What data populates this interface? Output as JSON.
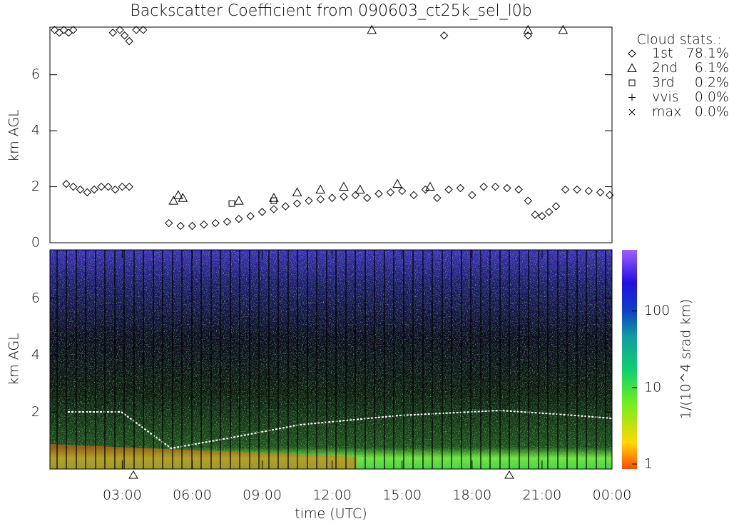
{
  "chart_data": [
    {
      "type": "scatter",
      "title": "Backscatter Coefficient from 090603_ct25k_sel_l0b",
      "y_label": "km AGL",
      "xlim": [
        -0.1,
        24
      ],
      "ylim": [
        0,
        7.7
      ],
      "yticks": [
        0,
        2,
        4,
        6
      ],
      "legend_title": "Cloud stats.:",
      "legend": [
        {
          "name": "1st",
          "label": "78.1%"
        },
        {
          "name": "2nd",
          "label": "6.1%"
        },
        {
          "name": "3rd",
          "label": "0.2%"
        },
        {
          "name": "vvis",
          "label": "0.0%"
        },
        {
          "name": "max",
          "label": "0.0%"
        }
      ],
      "series": [
        {
          "name": "1st",
          "color": "#000000",
          "x": [
            0.1,
            0.3,
            0.5,
            0.7,
            0.9,
            2.6,
            2.9,
            3.1,
            3.3,
            3.6,
            3.9,
            16.8,
            20.4,
            0.6,
            0.9,
            1.2,
            1.5,
            1.8,
            2.1,
            2.4,
            2.7,
            3.0,
            3.3,
            5.0,
            5.5,
            6.0,
            6.5,
            7.0,
            7.5,
            8.0,
            8.5,
            9.0,
            9.5,
            10.0,
            10.5,
            11.0,
            11.5,
            12.0,
            12.5,
            13.0,
            13.5,
            14.0,
            14.5,
            15.0,
            15.5,
            16.0,
            16.5,
            17.0,
            17.5,
            18.0,
            18.5,
            19.0,
            19.5,
            20.0,
            20.4,
            20.7,
            21.0,
            21.3,
            21.6,
            22.0,
            22.5,
            23.0,
            23.5,
            23.9
          ],
          "values": [
            7.6,
            7.5,
            7.6,
            7.5,
            7.6,
            7.5,
            7.6,
            7.4,
            7.2,
            7.6,
            7.6,
            7.4,
            7.4,
            2.1,
            2.0,
            1.9,
            1.8,
            1.9,
            2.0,
            2.0,
            1.9,
            2.0,
            2.0,
            0.7,
            0.6,
            0.6,
            0.65,
            0.7,
            0.75,
            0.85,
            0.95,
            1.1,
            1.2,
            1.3,
            1.4,
            1.5,
            1.55,
            1.6,
            1.65,
            1.7,
            1.6,
            1.75,
            1.8,
            1.85,
            1.7,
            1.9,
            1.6,
            1.9,
            1.95,
            1.7,
            2.0,
            2.0,
            1.95,
            1.9,
            1.5,
            1.0,
            0.95,
            1.1,
            1.3,
            1.9,
            1.9,
            1.85,
            1.8,
            1.7
          ]
        },
        {
          "name": "2nd",
          "color": "#000000",
          "x": [
            5.2,
            5.4,
            5.6,
            8.0,
            9.5,
            10.5,
            11.5,
            12.5,
            13.2,
            14.8,
            16.2,
            13.7,
            20.4,
            21.9
          ],
          "values": [
            1.5,
            1.7,
            1.6,
            1.5,
            1.6,
            1.8,
            1.9,
            2.0,
            1.9,
            2.1,
            2.0,
            7.6,
            7.6,
            7.6
          ]
        },
        {
          "name": "3rd",
          "color": "#000000",
          "x": [
            7.7,
            9.5
          ],
          "values": [
            1.4,
            1.5
          ]
        }
      ]
    },
    {
      "type": "heatmap",
      "y_label": "km AGL",
      "x_label": "time (UTC)",
      "xlim": [
        -0.1,
        24
      ],
      "ylim": [
        0,
        7.7
      ],
      "yticks": [
        2,
        4,
        6
      ],
      "xticks": [
        {
          "value": 3,
          "label": "03:00"
        },
        {
          "value": 6,
          "label": "06:00"
        },
        {
          "value": 9,
          "label": "09:00"
        },
        {
          "value": 12,
          "label": "12:00"
        },
        {
          "value": 15,
          "label": "15:00"
        },
        {
          "value": 18,
          "label": "18:00"
        },
        {
          "value": 21,
          "label": "21:00"
        },
        {
          "value": 24,
          "label": "00:00"
        }
      ],
      "colorbar_label": "1/(10^4 srad km)",
      "clim": [
        0.86,
        630
      ],
      "cticks": [
        1,
        10,
        100
      ],
      "log_scale": true
    }
  ]
}
